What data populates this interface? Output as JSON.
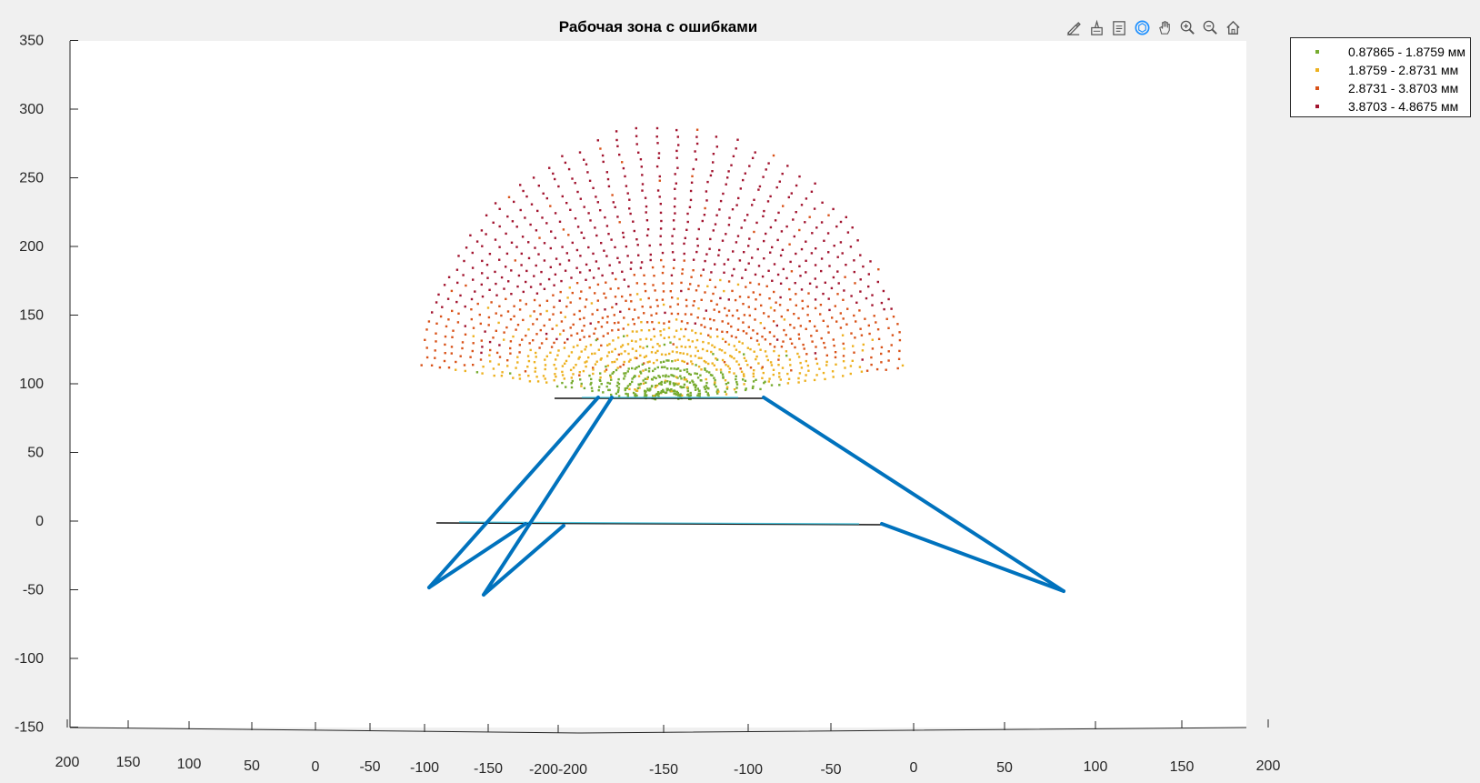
{
  "chart_data": {
    "type": "scatter",
    "title": "Рабочая зона с ошибками",
    "xlabel": "",
    "ylabel": "",
    "xlim": [
      -200,
      200
    ],
    "ylim": [
      -150,
      350
    ],
    "view": "3-D projection (x and y axes drawn along a slanted bottom edge)",
    "y_ticks": [
      "350",
      "300",
      "250",
      "200",
      "150",
      "100",
      "50",
      "0",
      "-50",
      "-100",
      "-150"
    ],
    "bottom_tick_labels": [
      "200",
      "150",
      "100",
      "50",
      "0",
      "-50",
      "-100",
      "-150",
      "-200-200",
      "-150",
      "-100",
      "-50",
      "0",
      "50",
      "100",
      "150",
      "200"
    ],
    "series": [
      {
        "name": "0.87865 - 1.8759 мм",
        "color": "#77ac30"
      },
      {
        "name": "1.8759 - 2.8731 мм",
        "color": "#edb120"
      },
      {
        "name": "2.8731 - 3.8703 мм",
        "color": "#d95319"
      },
      {
        "name": "3.8703 - 4.8675 мм",
        "color": "#a2142f"
      }
    ],
    "error_ranges_mm": [
      [
        0.87865,
        1.8759
      ],
      [
        1.8759,
        2.8731
      ],
      [
        2.8731,
        3.8703
      ],
      [
        3.8703,
        4.8675
      ]
    ],
    "workspace_y_range": [
      97,
      290
    ],
    "mechanism": {
      "color": "#0072bd",
      "platform_y": 90,
      "base_y": 0,
      "leg_foot_z": [
        -48,
        -52,
        -50
      ],
      "links": [
        [
          [
            -175,
            90
          ],
          [
            -210,
            -48
          ]
        ],
        [
          [
            -155,
            90
          ],
          [
            -180,
            -52
          ]
        ],
        [
          [
            -25,
            90
          ],
          [
            115,
            -50
          ]
        ]
      ]
    },
    "grid": false,
    "legend_position": "top-right outside"
  },
  "toolbar": {
    "icons": [
      "brush-icon",
      "data-tip-icon",
      "export-icon",
      "rotate-3d-icon",
      "pan-icon",
      "zoom-in-icon",
      "zoom-out-icon",
      "home-icon"
    ]
  }
}
